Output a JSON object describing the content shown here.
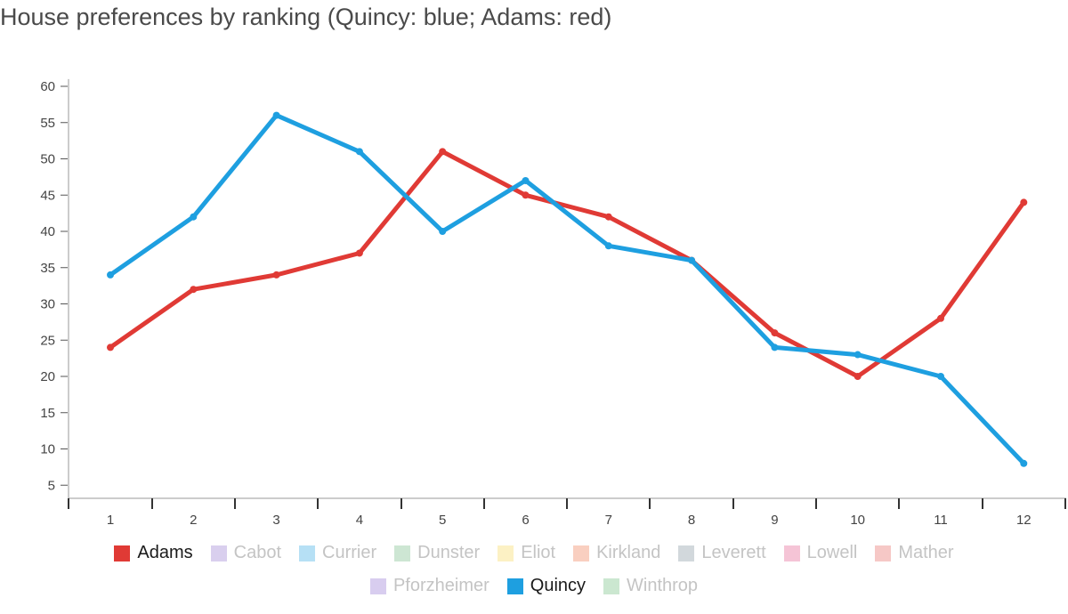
{
  "chart_data": {
    "type": "line",
    "title": "House preferences by ranking (Quincy: blue; Adams: red)",
    "xlabel": "",
    "ylabel": "",
    "x": [
      1,
      2,
      3,
      4,
      5,
      6,
      7,
      8,
      9,
      10,
      11,
      12
    ],
    "ylim": [
      3,
      61
    ],
    "yticks": [
      5,
      10,
      15,
      20,
      25,
      30,
      35,
      40,
      45,
      50,
      55,
      60
    ],
    "grid": false,
    "legend_position": "bottom",
    "series": [
      {
        "name": "Adams",
        "color": "#e03a35",
        "values": [
          24,
          32,
          34,
          37,
          51,
          45,
          42,
          36,
          26,
          20,
          28,
          44
        ]
      },
      {
        "name": "Quincy",
        "color": "#1e9fe0",
        "values": [
          34,
          42,
          56,
          51,
          40,
          47,
          38,
          36,
          24,
          23,
          20,
          8
        ]
      }
    ]
  },
  "legend": {
    "row1": [
      {
        "label": "Adams",
        "color": "#e03a35",
        "active": true
      },
      {
        "label": "Cabot",
        "color": "#d9cfee",
        "active": false
      },
      {
        "label": "Currier",
        "color": "#b6e0f5",
        "active": false
      },
      {
        "label": "Dunster",
        "color": "#cde6d3",
        "active": false
      },
      {
        "label": "Eliot",
        "color": "#fcf1c4",
        "active": false
      },
      {
        "label": "Kirkland",
        "color": "#f9cfc0",
        "active": false
      },
      {
        "label": "Leverett",
        "color": "#d2d8dc",
        "active": false
      },
      {
        "label": "Lowell",
        "color": "#f5c4d6",
        "active": false
      },
      {
        "label": "Mather",
        "color": "#f6c8c6",
        "active": false
      }
    ],
    "row2": [
      {
        "label": "Pforzheimer",
        "color": "#d8cdef",
        "active": false
      },
      {
        "label": "Quincy",
        "color": "#1e9fe0",
        "active": true
      },
      {
        "label": "Winthrop",
        "color": "#cbe7d0",
        "active": false
      }
    ]
  }
}
